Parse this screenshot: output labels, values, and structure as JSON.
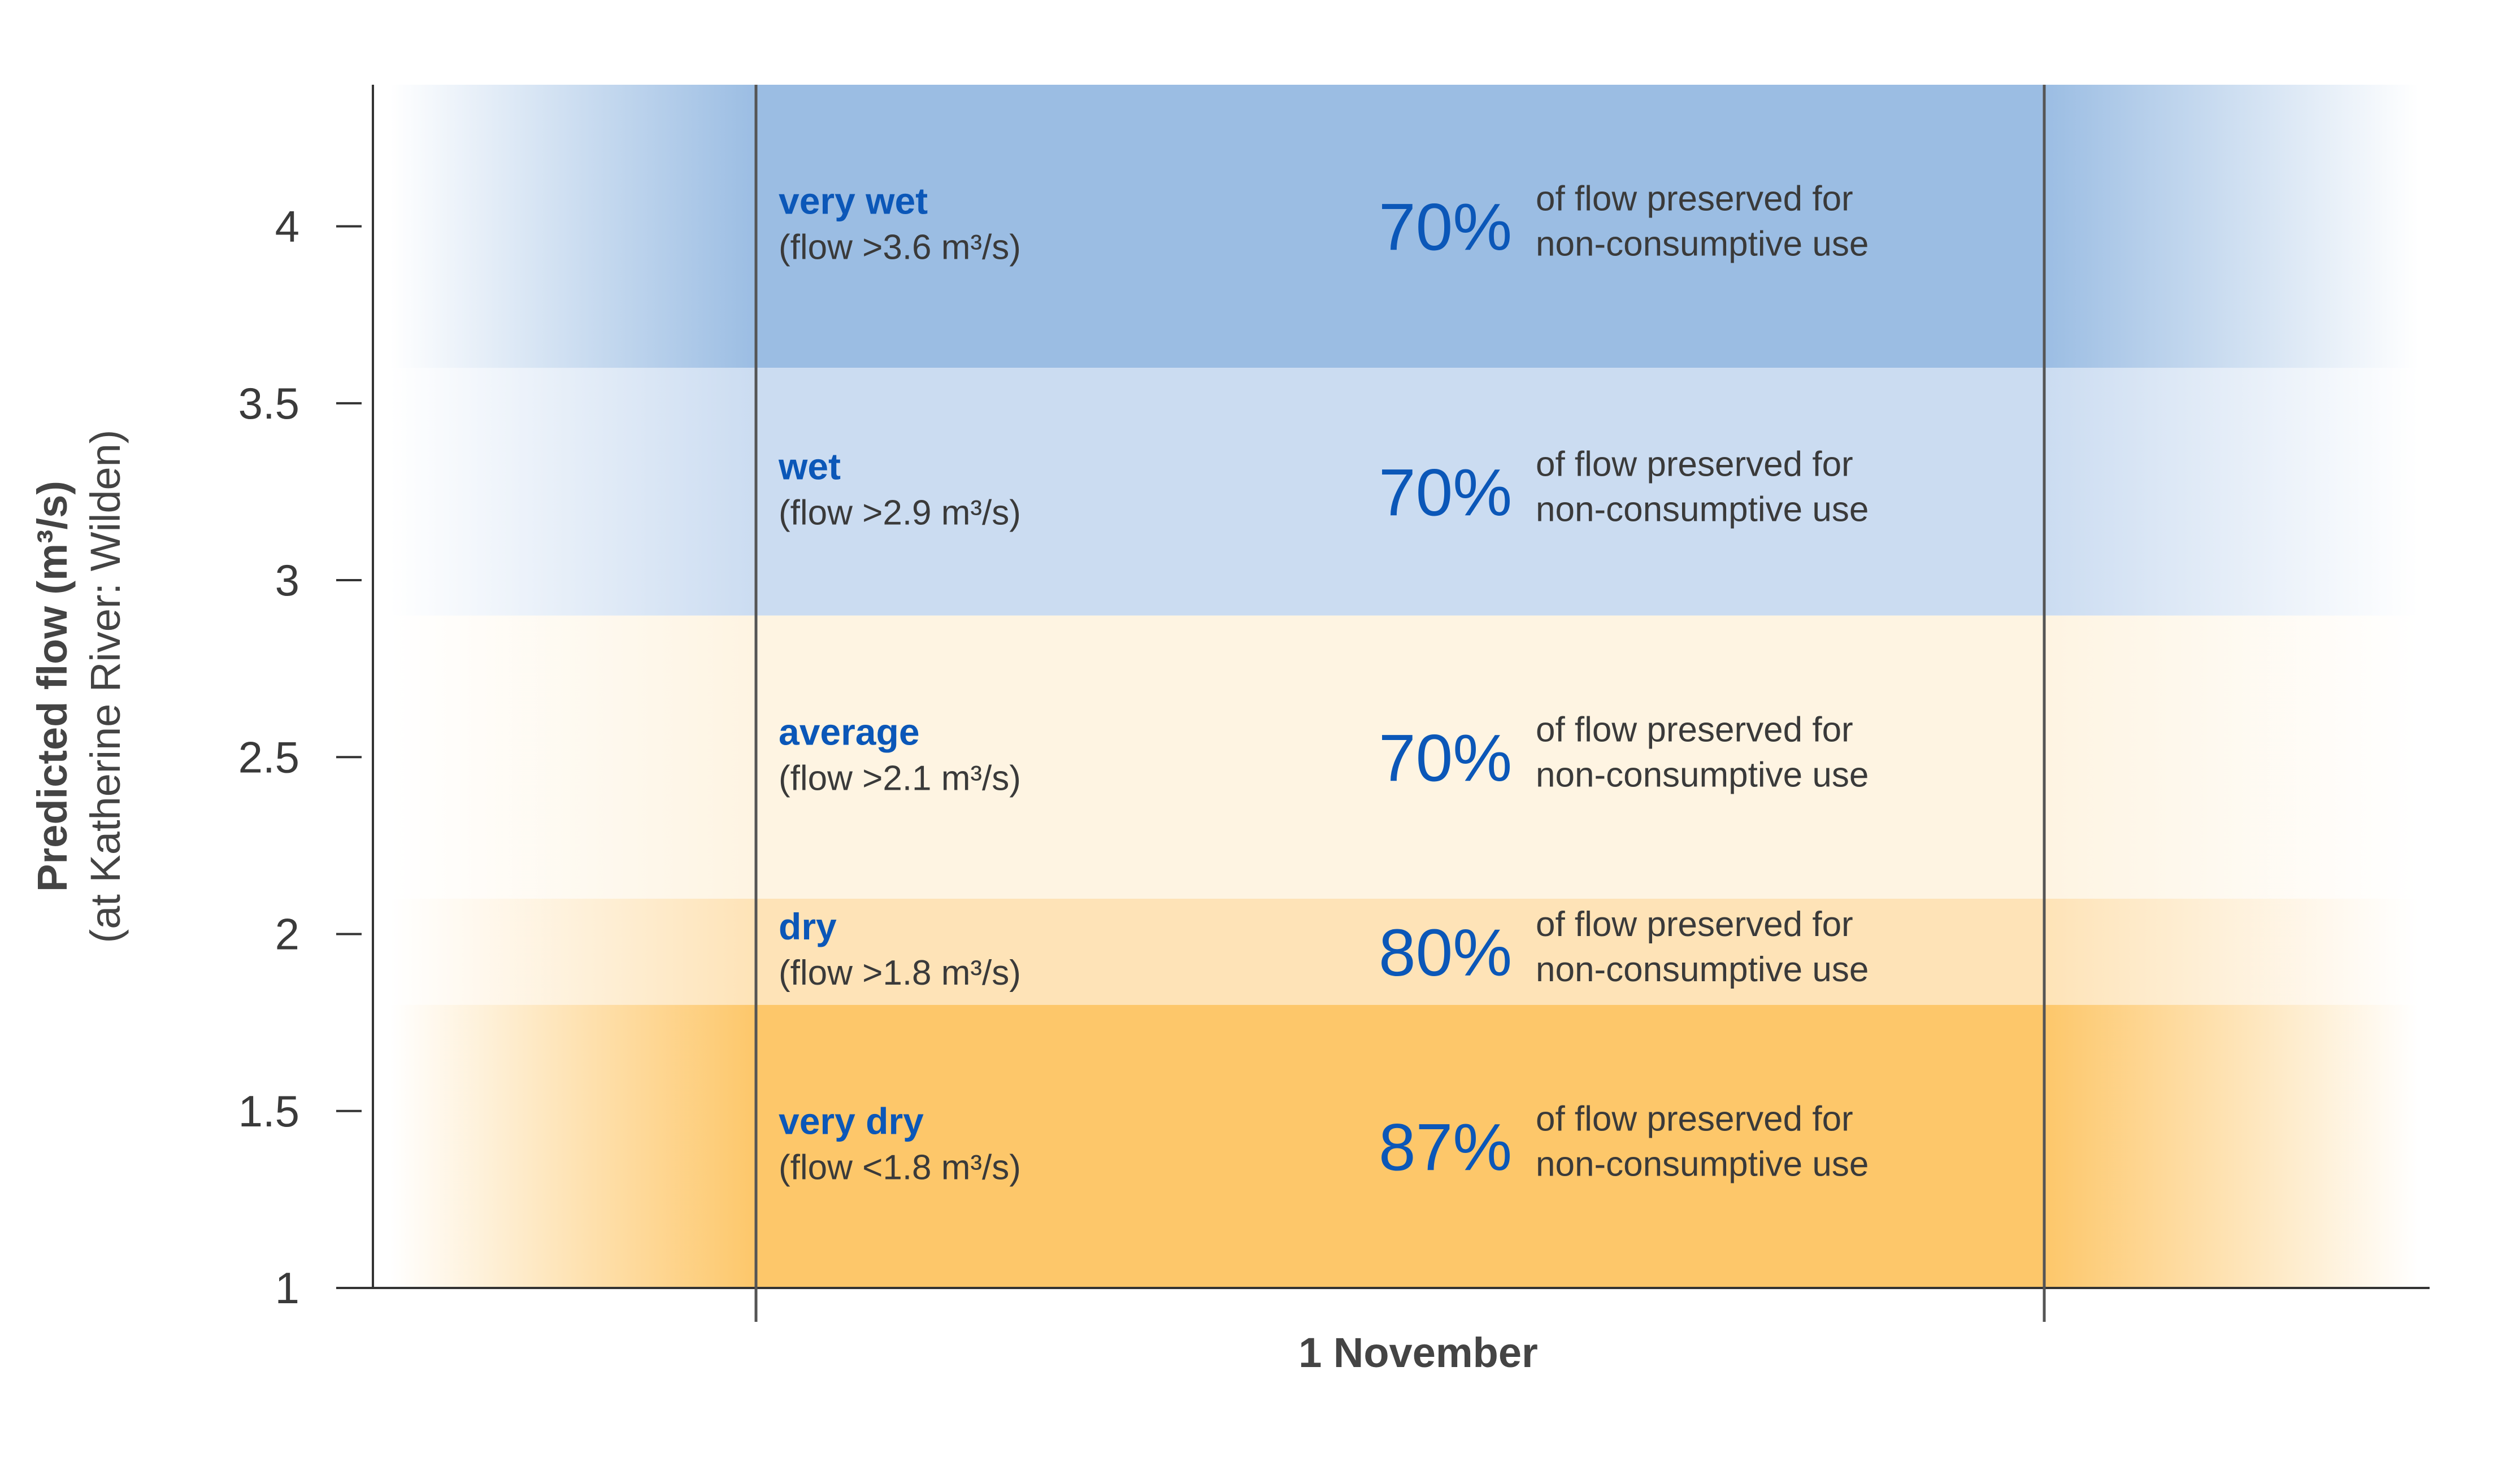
{
  "chart_data": {
    "type": "area",
    "title": "",
    "xlabel": "1 November",
    "ylabel": {
      "main": "Predicted flow (m³/s)",
      "sub": "(at Katherine River: Wilden)"
    },
    "ylim": [
      1,
      4.4
    ],
    "yticks": [
      "1",
      "1.5",
      "2",
      "2.5",
      "3",
      "3.5",
      "4"
    ],
    "bands": [
      {
        "name": "very wet",
        "flow_label": "(flow >3.6 m³/s)",
        "range": [
          3.6,
          4.4
        ],
        "percent": "70%",
        "desc_line1": "of flow preserved for",
        "desc_line2": "non-consumptive use",
        "color": "#9bbde3"
      },
      {
        "name": "wet",
        "flow_label": "(flow >2.9 m³/s)",
        "range": [
          2.9,
          3.6
        ],
        "percent": "70%",
        "desc_line1": "of flow preserved for",
        "desc_line2": "non-consumptive use",
        "color": "#cbdcf1"
      },
      {
        "name": "average",
        "flow_label": "(flow >2.1 m³/s)",
        "range": [
          2.1,
          2.9
        ],
        "percent": "70%",
        "desc_line1": "of flow preserved for",
        "desc_line2": "non-consumptive use",
        "color": "#fef4e2"
      },
      {
        "name": "dry",
        "flow_label": "(flow >1.8 m³/s)",
        "range": [
          1.8,
          2.1
        ],
        "percent": "80%",
        "desc_line1": "of flow preserved for",
        "desc_line2": "non-consumptive use",
        "color": "#fee3b7"
      },
      {
        "name": "very dry",
        "flow_label": "(flow <1.8 m³/s)",
        "range": [
          1.0,
          1.8
        ],
        "percent": "87%",
        "desc_line1": "of flow preserved for",
        "desc_line2": "non-consumptive use",
        "color": "#fdc76a"
      }
    ],
    "colors": {
      "axis": "#333333",
      "category_text": "#0b57b8",
      "percent_text": "#0b57b8",
      "body_text": "#3a3a3a"
    }
  }
}
